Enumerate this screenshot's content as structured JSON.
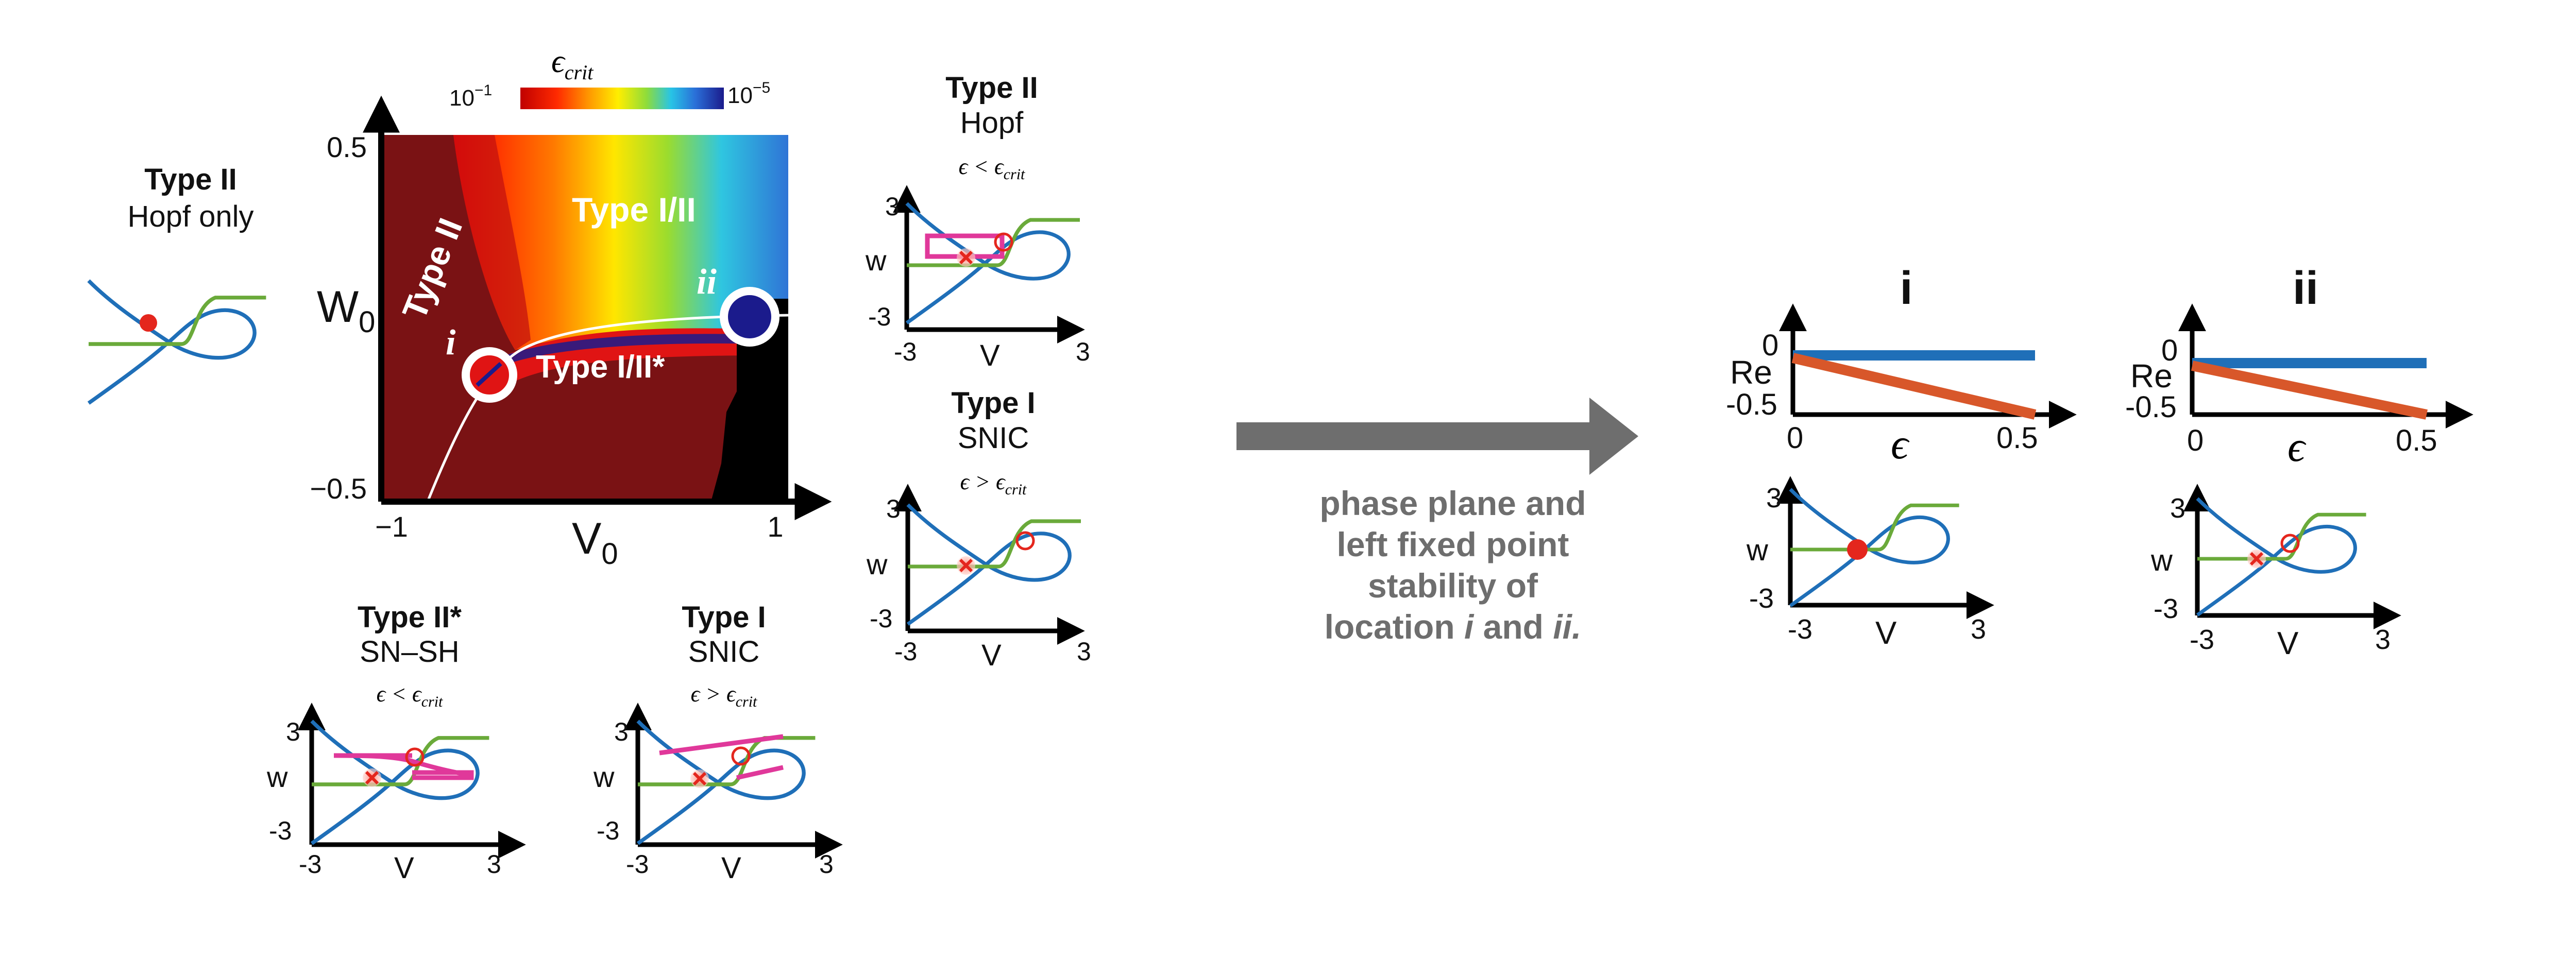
{
  "colorbar": {
    "title_base": "ϵ",
    "title_sub": "crit",
    "left_label_base": "10",
    "left_label_exp": "−1",
    "right_label_base": "10",
    "right_label_exp": "−5"
  },
  "heatmap": {
    "xlabel": "V",
    "xlabel_sub": "0",
    "ylabel": "W",
    "ylabel_sub": "0",
    "x_ticks": [
      "−1",
      "1"
    ],
    "y_ticks": [
      "0.5",
      "−0.5"
    ],
    "region_type2": "Type II",
    "region_type12": "Type I/II",
    "region_type12star": "Type I/II*",
    "marker_i": "i",
    "marker_ii": "ii"
  },
  "panel_hopf_only": {
    "title": "Type II",
    "subtitle": "Hopf only"
  },
  "panel_hopf": {
    "title": "Type II",
    "subtitle": "Hopf",
    "condition": "ϵ < ϵ",
    "condition_sub": "crit"
  },
  "panel_snic_right": {
    "title": "Type I",
    "subtitle": "SNIC",
    "condition": "ϵ > ϵ",
    "condition_sub": "crit"
  },
  "panel_snsh": {
    "title": "Type II*",
    "subtitle": "SN–SH",
    "condition": "ϵ < ϵ",
    "condition_sub": "crit"
  },
  "panel_snic_bottom": {
    "title": "Type I",
    "subtitle": "SNIC",
    "condition": "ϵ > ϵ",
    "condition_sub": "crit"
  },
  "phase_axes": {
    "y_top": "3",
    "y_mid": "w",
    "y_bottom": "-3",
    "x_left": "-3",
    "x_mid": "V",
    "x_right": "3"
  },
  "arrow_caption": {
    "line1": "phase plane and",
    "line2": "left fixed point",
    "line3": "stability of",
    "line4_a": "location ",
    "line4_i": "i",
    "line4_b": " and ",
    "line4_ii": "ii."
  },
  "stability_i": {
    "title": "i",
    "y_top": "0",
    "y_label": "Re",
    "y_bottom": "-0.5",
    "x_left": "0",
    "x_label": "ϵ",
    "x_right": "0.5"
  },
  "stability_ii": {
    "title": "ii",
    "y_top": "0",
    "y_label": "Re",
    "y_bottom": "-0.5",
    "x_left": "0",
    "x_label": "ϵ",
    "x_right": "0.5"
  },
  "colors": {
    "blue": "#1f6fb8",
    "green": "#6aaa3a",
    "magenta": "#e0389a",
    "red": "#e4261d",
    "orange": "#d8572a",
    "dark_red": "#7a1214",
    "gray": "#6e6e6e"
  }
}
